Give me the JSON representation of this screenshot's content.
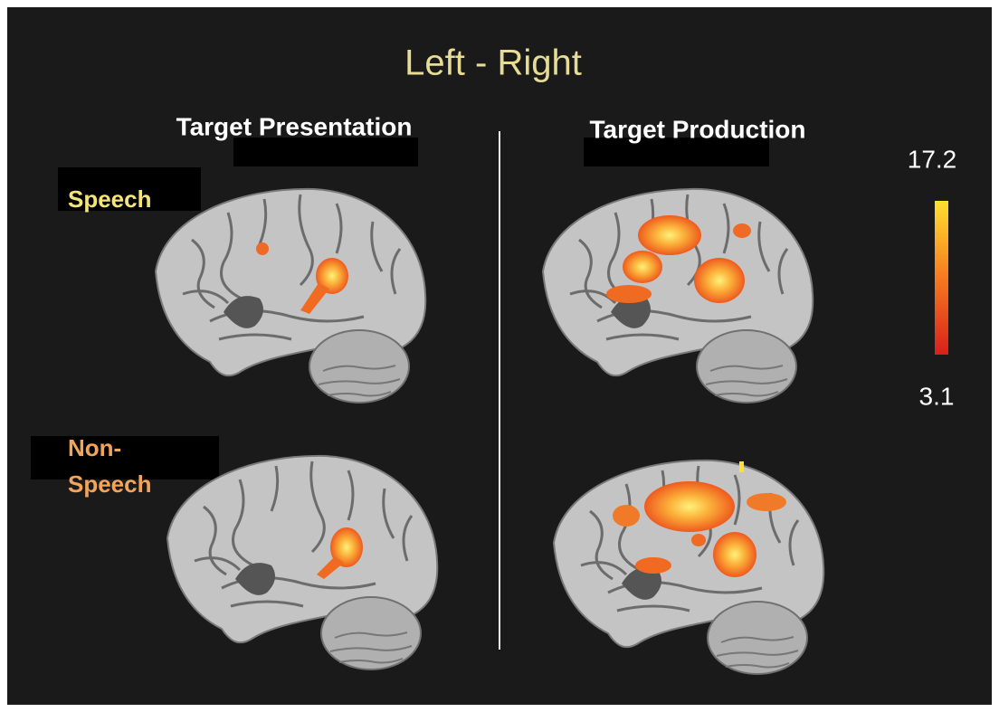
{
  "title": "Left - Right",
  "columns": [
    "Target Presentation",
    "Target Production"
  ],
  "rows": [
    [
      "Speech"
    ],
    [
      "Non-",
      "Speech"
    ]
  ],
  "colorbar": {
    "max": 17.2,
    "min": 3.1
  }
}
